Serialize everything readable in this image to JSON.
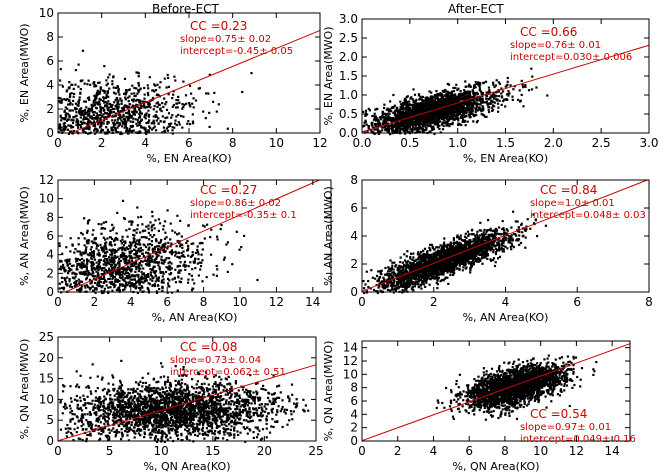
{
  "column_titles": {
    "left": "Before-ECT",
    "right": "After-ECT"
  },
  "colors": {
    "fit_line": "#cc0000",
    "stats_text": "#cc0000",
    "points": "#000000",
    "axes": "#000000"
  },
  "chart_data": [
    {
      "id": "before-en",
      "type": "scatter",
      "xlabel": "%, EN Area(KO)",
      "ylabel": "%, EN Area(MWO)",
      "xlim": [
        0,
        12
      ],
      "ylim": [
        0,
        10
      ],
      "xticks": [
        0,
        2,
        4,
        6,
        8,
        10,
        12
      ],
      "yticks": [
        0,
        2,
        4,
        6,
        8,
        10
      ],
      "cc": "CC =0.23",
      "slope": "slope=0.75± 0.02",
      "intercept": "intercept=-0.45± 0.05",
      "fit": {
        "slope": 0.75,
        "intercept": -0.45
      },
      "cloud": {
        "n": 1300,
        "x_mu": 2.0,
        "x_sd": 2.0,
        "y_mu": 1.3,
        "y_sd": 1.6,
        "rho": 0.23,
        "clip": true
      }
    },
    {
      "id": "after-en",
      "type": "scatter",
      "xlabel": "%, EN Area(KO)",
      "ylabel": "%, EN Area(MWO)",
      "xlim": [
        0,
        3.0
      ],
      "ylim": [
        0,
        3.0
      ],
      "xticks": [
        0.0,
        0.5,
        1.0,
        1.5,
        2.0,
        2.5,
        3.0
      ],
      "yticks": [
        0.0,
        0.5,
        1.0,
        1.5,
        2.0,
        2.5,
        3.0
      ],
      "tick_decimals": 1,
      "cc": "CC =0.66",
      "slope": "slope=0.76± 0.01",
      "intercept": "intercept=0.030± 0.006",
      "fit": {
        "slope": 0.76,
        "intercept": 0.03
      },
      "cloud": {
        "n": 2400,
        "x_mu": 0.72,
        "x_sd": 0.33,
        "y_mu": 0.58,
        "y_sd": 0.3,
        "rho": 0.66,
        "clip": true
      }
    },
    {
      "id": "before-an",
      "type": "scatter",
      "xlabel": "%, AN Area(KO)",
      "ylabel": "%, AN Area(MWO)",
      "xlim": [
        0,
        15
      ],
      "ylim": [
        0,
        12
      ],
      "xticks": [
        0,
        2,
        4,
        6,
        8,
        10,
        12,
        14
      ],
      "yticks": [
        0,
        2,
        4,
        6,
        8,
        10,
        12
      ],
      "cc": "CC =0.27",
      "slope": "slope=0.86± 0.02",
      "intercept": "intercept=-0.35± 0.1",
      "fit": {
        "slope": 0.86,
        "intercept": -0.35
      },
      "cloud": {
        "n": 1500,
        "x_mu": 3.3,
        "x_sd": 2.3,
        "y_mu": 2.6,
        "y_sd": 2.3,
        "rho": 0.27,
        "clip": true
      }
    },
    {
      "id": "after-an",
      "type": "scatter",
      "xlabel": "%, AN Area(KO)",
      "ylabel": "%, AN Area(MWO)",
      "xlim": [
        0,
        8
      ],
      "ylim": [
        0,
        8
      ],
      "xticks": [
        0,
        2,
        4,
        6,
        8
      ],
      "yticks": [
        0,
        2,
        4,
        6,
        8
      ],
      "cc": "CC =0.84",
      "slope": "slope=1.0± 0.01",
      "intercept": "intercept=0.048± 0.03",
      "fit": {
        "slope": 1.0,
        "intercept": 0.048
      },
      "cloud": {
        "n": 2400,
        "x_mu": 2.3,
        "x_sd": 0.9,
        "y_mu": 2.35,
        "y_sd": 1.0,
        "rho": 0.84,
        "clip": true
      }
    },
    {
      "id": "before-qn",
      "type": "scatter",
      "xlabel": "%, QN Area(KO)",
      "ylabel": "%, QN Area(MWO)",
      "xlim": [
        0,
        25
      ],
      "ylim": [
        0,
        25
      ],
      "xticks": [
        0,
        5,
        10,
        15,
        20,
        25
      ],
      "yticks": [
        0,
        5,
        10,
        15,
        20,
        25
      ],
      "cc": "CC =0.08",
      "slope": "slope=0.73± 0.04",
      "intercept": "intercept=0.062± 0.51",
      "fit": {
        "slope": 0.73,
        "intercept": 0.062
      },
      "cloud": {
        "n": 2600,
        "x_mu": 11,
        "x_sd": 5,
        "y_mu": 7.5,
        "y_sd": 3.5,
        "rho": 0.08,
        "clip": true
      }
    },
    {
      "id": "after-qn",
      "type": "scatter",
      "xlabel": "%, QN Area(KO)",
      "ylabel": "%, QN Area(MWO)",
      "xlim": [
        0,
        15
      ],
      "ylim": [
        0,
        15
      ],
      "xticks": [
        0,
        2,
        4,
        6,
        8,
        10,
        12,
        14
      ],
      "yticks": [
        0,
        2,
        4,
        6,
        8,
        10,
        12,
        14
      ],
      "cc": "CC =0.54",
      "slope": "slope=0.97± 0.01",
      "intercept": "intercept=0.049± 0.16",
      "fit": {
        "slope": 0.97,
        "intercept": 0.049
      },
      "cloud": {
        "n": 2400,
        "x_mu": 8.5,
        "x_sd": 1.35,
        "y_mu": 8.3,
        "y_sd": 1.6,
        "rho": 0.54,
        "clip": true
      }
    }
  ]
}
